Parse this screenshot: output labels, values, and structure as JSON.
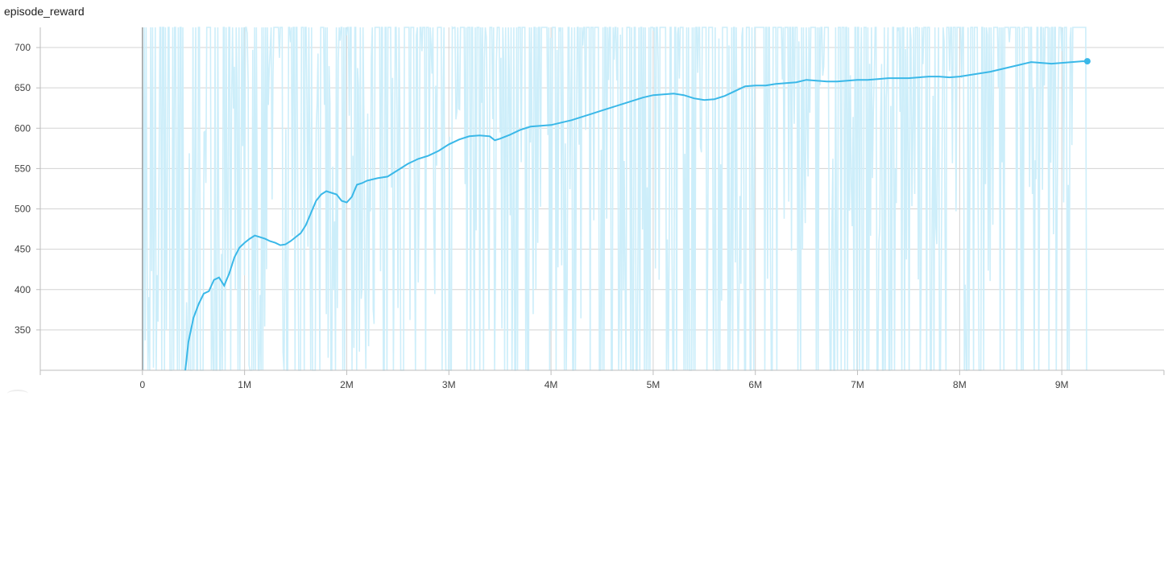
{
  "chart_title": "episode_reward",
  "chart_data": {
    "type": "line",
    "title": "episode_reward",
    "xlabel": "",
    "ylabel": "",
    "xlim": [
      -1000000,
      10000000
    ],
    "ylim": [
      300,
      725
    ],
    "grid": true,
    "x_ticks": [
      {
        "value": 0,
        "label": "0"
      },
      {
        "value": 1000000,
        "label": "1M"
      },
      {
        "value": 2000000,
        "label": "2M"
      },
      {
        "value": 3000000,
        "label": "3M"
      },
      {
        "value": 4000000,
        "label": "4M"
      },
      {
        "value": 5000000,
        "label": "5M"
      },
      {
        "value": 6000000,
        "label": "6M"
      },
      {
        "value": 7000000,
        "label": "7M"
      },
      {
        "value": 8000000,
        "label": "8M"
      },
      {
        "value": 9000000,
        "label": "9M"
      }
    ],
    "y_ticks": [
      {
        "value": 350,
        "label": "350"
      },
      {
        "value": 400,
        "label": "400"
      },
      {
        "value": 450,
        "label": "450"
      },
      {
        "value": 500,
        "label": "500"
      },
      {
        "value": 550,
        "label": "550"
      },
      {
        "value": 600,
        "label": "600"
      },
      {
        "value": 650,
        "label": "650"
      },
      {
        "value": 700,
        "label": "700"
      }
    ],
    "series": [
      {
        "color": "#3ab8e8",
        "raw_color": "#cdeefa",
        "x": [
          420000,
          450000,
          500000,
          550000,
          600000,
          650000,
          700000,
          750000,
          800000,
          850000,
          900000,
          950000,
          1000000,
          1050000,
          1100000,
          1150000,
          1200000,
          1250000,
          1300000,
          1350000,
          1400000,
          1450000,
          1500000,
          1550000,
          1600000,
          1650000,
          1700000,
          1750000,
          1800000,
          1850000,
          1900000,
          1950000,
          2000000,
          2050000,
          2100000,
          2150000,
          2200000,
          2300000,
          2400000,
          2500000,
          2600000,
          2700000,
          2800000,
          2900000,
          3000000,
          3100000,
          3200000,
          3300000,
          3400000,
          3450000,
          3500000,
          3600000,
          3700000,
          3800000,
          3900000,
          4000000,
          4100000,
          4200000,
          4300000,
          4400000,
          4500000,
          4600000,
          4700000,
          4800000,
          4900000,
          5000000,
          5100000,
          5200000,
          5300000,
          5400000,
          5500000,
          5600000,
          5700000,
          5800000,
          5900000,
          6000000,
          6100000,
          6200000,
          6300000,
          6400000,
          6500000,
          6600000,
          6700000,
          6800000,
          6900000,
          7000000,
          7100000,
          7200000,
          7300000,
          7400000,
          7500000,
          7600000,
          7700000,
          7800000,
          7900000,
          8000000,
          8100000,
          8200000,
          8300000,
          8400000,
          8500000,
          8600000,
          8700000,
          8800000,
          8900000,
          9000000,
          9100000,
          9200000,
          9250000
        ],
        "y": [
          300,
          335,
          365,
          382,
          395,
          398,
          412,
          415,
          405,
          420,
          440,
          452,
          458,
          463,
          467,
          465,
          463,
          460,
          458,
          455,
          456,
          460,
          465,
          470,
          480,
          495,
          510,
          518,
          522,
          520,
          518,
          510,
          508,
          515,
          530,
          532,
          535,
          538,
          540,
          548,
          556,
          562,
          566,
          572,
          580,
          586,
          590,
          591,
          590,
          585,
          587,
          592,
          598,
          602,
          603,
          604,
          607,
          610,
          614,
          618,
          622,
          626,
          630,
          634,
          638,
          641,
          642,
          643,
          641,
          637,
          635,
          636,
          640,
          646,
          652,
          653,
          653,
          655,
          656,
          657,
          660,
          659,
          658,
          658,
          659,
          660,
          660,
          661,
          662,
          662,
          662,
          663,
          664,
          664,
          663,
          664,
          666,
          668,
          670,
          673,
          676,
          679,
          682,
          681,
          680,
          681,
          682,
          683,
          683
        ]
      }
    ]
  }
}
